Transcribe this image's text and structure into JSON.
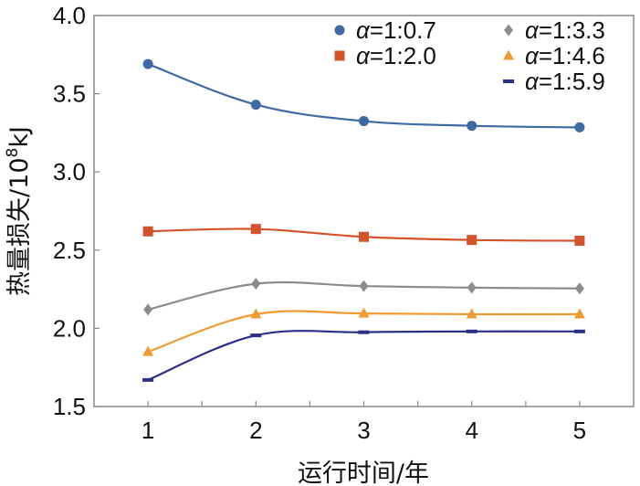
{
  "chart_data": {
    "type": "line",
    "title": "",
    "xlabel": "运行时间/年",
    "ylabel_main": "热量损失/10",
    "ylabel_sup": "8",
    "ylabel_unit": "kJ",
    "categories": [
      "1",
      "2",
      "3",
      "4",
      "5"
    ],
    "x": [
      1,
      2,
      3,
      4,
      5
    ],
    "xlim": [
      0.5,
      5.5
    ],
    "ylim": [
      1.5,
      4.0
    ],
    "yticks": [
      "1.5",
      "2.0",
      "2.5",
      "3.0",
      "3.5",
      "4.0"
    ],
    "ytick_values": [
      1.5,
      2.0,
      2.5,
      3.0,
      3.5,
      4.0
    ],
    "grid": false,
    "legend_position": "top-right",
    "series": [
      {
        "name_symbol": "α",
        "name_value": "=1:0.7",
        "marker": "circle",
        "color": "#3d6aa3",
        "values": [
          3.69,
          3.43,
          3.325,
          3.295,
          3.285
        ]
      },
      {
        "name_symbol": "α",
        "name_value": "=1:2.0",
        "marker": "square",
        "color": "#d4532a",
        "values": [
          2.62,
          2.635,
          2.585,
          2.565,
          2.56
        ]
      },
      {
        "name_symbol": "α",
        "name_value": "=1:3.3",
        "marker": "diamond",
        "color": "#8c8c8c",
        "values": [
          2.12,
          2.285,
          2.27,
          2.26,
          2.255
        ]
      },
      {
        "name_symbol": "α",
        "name_value": "=1:4.6",
        "marker": "triangle",
        "color": "#ef9b32",
        "values": [
          1.85,
          2.09,
          2.095,
          2.09,
          2.09
        ]
      },
      {
        "name_symbol": "α",
        "name_value": "=1:5.9",
        "marker": "dash",
        "color": "#2b2f86",
        "values": [
          1.67,
          1.955,
          1.975,
          1.98,
          1.98
        ]
      }
    ]
  }
}
